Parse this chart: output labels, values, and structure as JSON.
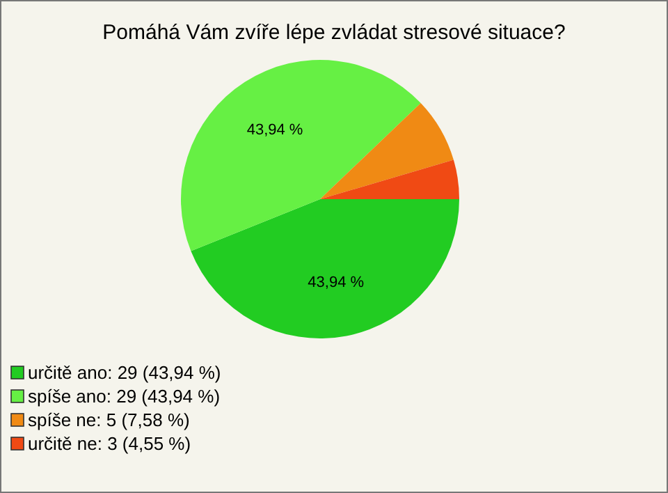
{
  "chart_data": {
    "type": "pie",
    "title": "Pomáhá Vám zvíře lépe zvládat stresové situace?",
    "categories": [
      "určitě ano: 29 (43,94 %)",
      "spíše ano: 29 (43,94 %)",
      "spíše ne: 5 (7,58 %)",
      "určitě ne: 3 (4,55 %)"
    ],
    "values": [
      43.94,
      43.94,
      7.58,
      4.55
    ],
    "colors": [
      "#22cc22",
      "#66f044",
      "#f08a14",
      "#f04a14"
    ],
    "value_labels": [
      "43,94 %",
      "43,94 %",
      null,
      null
    ],
    "legend": "bottom left"
  }
}
